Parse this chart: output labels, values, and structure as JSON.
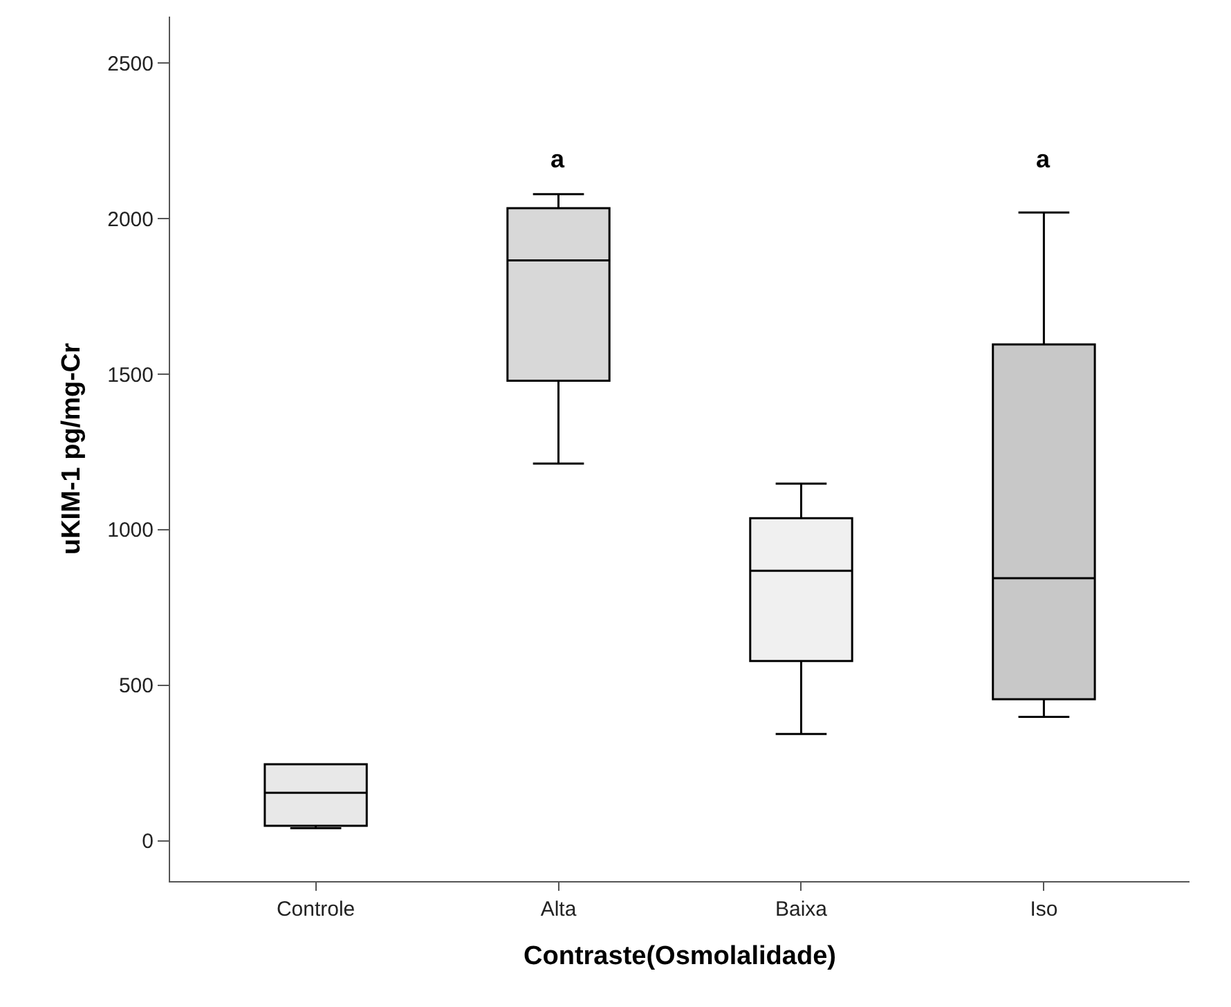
{
  "chart_data": {
    "type": "box",
    "xlabel": "Contraste(Osmolalidade)",
    "ylabel": "uKIM-1 pg/mg-Cr",
    "categories": [
      "Controle",
      "Alta",
      "Baixa",
      "Iso"
    ],
    "boxes": [
      {
        "low": 40,
        "q1": 48,
        "median": 154,
        "q3": 246,
        "high": 246
      },
      {
        "low": 1213,
        "q1": 1479,
        "median": 1866,
        "q3": 2034,
        "high": 2079
      },
      {
        "low": 343,
        "q1": 578,
        "median": 868,
        "q3": 1037,
        "high": 1148
      },
      {
        "low": 398,
        "q1": 455,
        "median": 844,
        "q3": 1596,
        "high": 2020
      }
    ],
    "colors": [
      "#e8e8e8",
      "#d8d8d8",
      "#f0f0f0",
      "#c8c8c8"
    ],
    "ylim": [
      -130,
      2650
    ],
    "yticks": [
      0,
      500,
      1000,
      1500,
      2000,
      2500
    ],
    "grid": false,
    "legend": false,
    "annotations": [
      "a",
      "a"
    ]
  }
}
